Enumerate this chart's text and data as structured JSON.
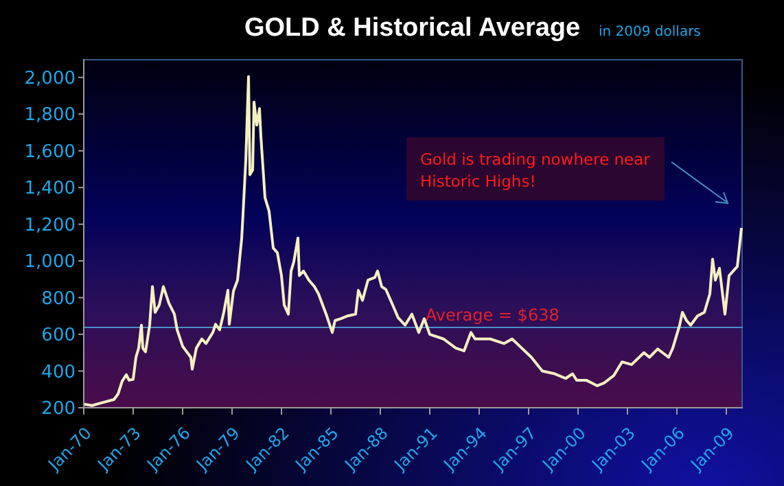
{
  "chart_data": {
    "type": "line",
    "title": "GOLD & Historical Average",
    "subtitle": "in 2009 dollars",
    "annotations": [
      "Gold is trading nowhere near Historic Highs!"
    ],
    "x": [
      "1970-01",
      "1970-07",
      "1971-01",
      "1971-11",
      "1972-02",
      "1972-05",
      "1972-08",
      "1972-10",
      "1973-01",
      "1973-03",
      "1973-05",
      "1973-07",
      "1973-08",
      "1973-10",
      "1974-01",
      "1974-03",
      "1974-05",
      "1974-08",
      "1974-11",
      "1975-03",
      "1975-07",
      "1975-09",
      "1976-01",
      "1976-07",
      "1976-08",
      "1976-11",
      "1977-03",
      "1977-06",
      "1977-11",
      "1978-01",
      "1978-04",
      "1978-07",
      "1978-10",
      "1978-11",
      "1979-02",
      "1979-05",
      "1979-08",
      "1979-09",
      "1979-11",
      "1980-01",
      "1980-02",
      "1980-04",
      "1980-05",
      "1980-07",
      "1980-09",
      "1980-10",
      "1981-01",
      "1981-04",
      "1981-07",
      "1981-10",
      "1982-01",
      "1982-03",
      "1982-06",
      "1982-08",
      "1982-10",
      "1983-01",
      "1983-02",
      "1983-05",
      "1983-09",
      "1984-01",
      "1984-04",
      "1984-07",
      "1984-10",
      "1985-02",
      "1985-04",
      "1985-08",
      "1986-01",
      "1986-07",
      "1986-09",
      "1986-12",
      "1987-04",
      "1987-09",
      "1987-11",
      "1988-02",
      "1988-05",
      "1988-10",
      "1989-02",
      "1989-07",
      "1989-12",
      "1990-05",
      "1990-09",
      "1991-01",
      "1991-11",
      "1992-08",
      "1993-02",
      "1993-07",
      "1993-10",
      "1994-09",
      "1995-07",
      "1996-01",
      "1996-08",
      "1997-03",
      "1997-11",
      "1998-08",
      "1999-04",
      "1999-09",
      "1999-12",
      "2000-07",
      "2001-03",
      "2001-08",
      "2002-03",
      "2002-09",
      "2003-04",
      "2004-01",
      "2004-05",
      "2004-11",
      "2005-07",
      "2005-10",
      "2006-03",
      "2006-05",
      "2006-08",
      "2006-11",
      "2007-04",
      "2007-09",
      "2008-01",
      "2008-03",
      "2008-05",
      "2008-08",
      "2008-12",
      "2009-03",
      "2009-06",
      "2009-09",
      "2009-12"
    ],
    "series": [
      {
        "color": "#f5f0c0",
        "values": [
          220,
          212,
          225,
          245,
          275,
          345,
          380,
          350,
          355,
          475,
          525,
          650,
          525,
          505,
          650,
          860,
          720,
          760,
          860,
          770,
          710,
          625,
          535,
          475,
          410,
          525,
          575,
          550,
          610,
          655,
          625,
          720,
          840,
          655,
          835,
          895,
          1120,
          1255,
          1545,
          2005,
          1470,
          1495,
          1865,
          1740,
          1830,
          1680,
          1345,
          1270,
          1070,
          1045,
          920,
          760,
          710,
          945,
          995,
          1125,
          920,
          945,
          895,
          860,
          820,
          760,
          700,
          610,
          675,
          685,
          700,
          710,
          840,
          785,
          895,
          910,
          945,
          860,
          845,
          760,
          690,
          650,
          710,
          610,
          685,
          600,
          575,
          525,
          510,
          610,
          575,
          575,
          550,
          575,
          525,
          475,
          400,
          385,
          360,
          385,
          350,
          350,
          320,
          335,
          375,
          450,
          435,
          500,
          475,
          520,
          475,
          525,
          650,
          720,
          675,
          650,
          700,
          720,
          820,
          1010,
          895,
          960,
          710,
          920,
          945,
          970,
          1180
        ]
      }
    ],
    "xlim": [
      "1970-01",
      "2010-01"
    ],
    "xticks": [
      {
        "value": "1970-01",
        "label": "Jan-70"
      },
      {
        "value": "1973-01",
        "label": "Jan-73"
      },
      {
        "value": "1976-01",
        "label": "Jan-76"
      },
      {
        "value": "1979-01",
        "label": "Jan-79"
      },
      {
        "value": "1982-01",
        "label": "Jan-82"
      },
      {
        "value": "1985-01",
        "label": "Jan-85"
      },
      {
        "value": "1988-01",
        "label": "Jan-88"
      },
      {
        "value": "1991-01",
        "label": "Jan-91"
      },
      {
        "value": "1994-01",
        "label": "Jan-94"
      },
      {
        "value": "1997-01",
        "label": "Jan-97"
      },
      {
        "value": "2000-01",
        "label": "Jan-00"
      },
      {
        "value": "2003-01",
        "label": "Jan-03"
      },
      {
        "value": "2006-01",
        "label": "Jan-06"
      },
      {
        "value": "2009-01",
        "label": "Jan-09"
      }
    ],
    "ylim": [
      200,
      2100
    ],
    "yticks": [
      {
        "value": 200,
        "label": "200"
      },
      {
        "value": 400,
        "label": "400"
      },
      {
        "value": 600,
        "label": "600"
      },
      {
        "value": 800,
        "label": "800"
      },
      {
        "value": 1000,
        "label": "1,000"
      },
      {
        "value": 1200,
        "label": "1,200"
      },
      {
        "value": 1400,
        "label": "1,400"
      },
      {
        "value": 1600,
        "label": "1,600"
      },
      {
        "value": 1800,
        "label": "1,800"
      },
      {
        "value": 2000,
        "label": "2,000"
      }
    ],
    "ref_lines": [
      {
        "axis": "y",
        "value": 638,
        "label": "Average = $638",
        "color": "#4a90c8"
      }
    ],
    "grid": false,
    "marker": "none",
    "line_style": "solid"
  }
}
